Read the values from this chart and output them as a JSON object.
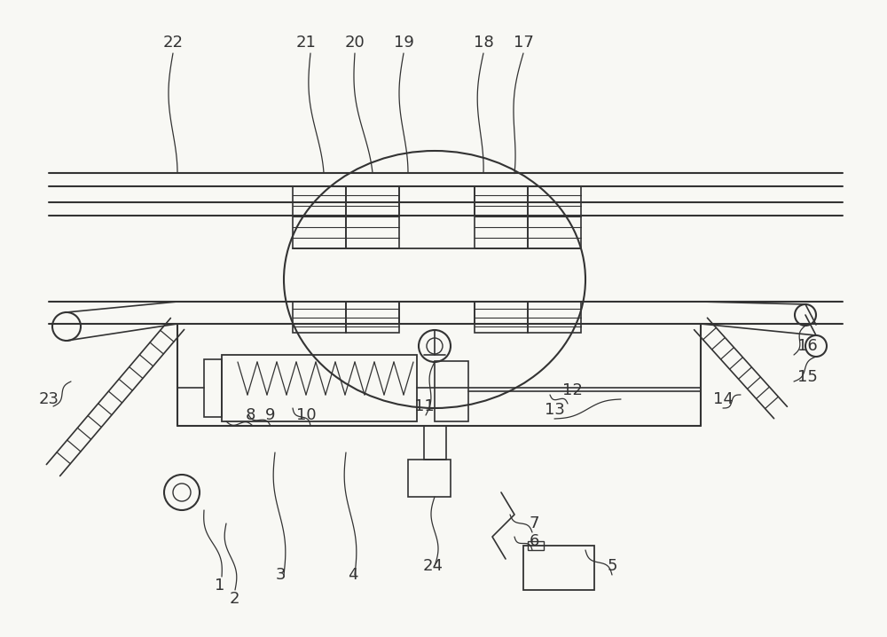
{
  "bg_color": "#f8f8f4",
  "line_color": "#333333",
  "lw": 1.3,
  "fig_width": 10.0,
  "fig_height": 7.18,
  "dpi": 100
}
